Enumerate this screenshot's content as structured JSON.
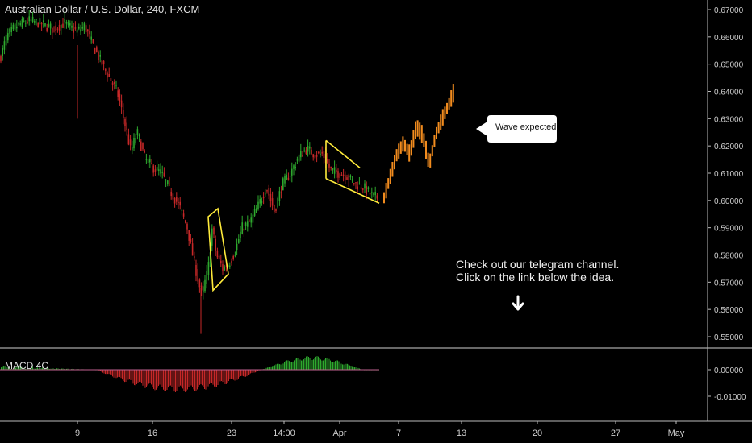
{
  "header": {
    "title": "Australian Dollar / U.S. Dollar, 240, FXCM"
  },
  "macd": {
    "label": "MACD 4C"
  },
  "annotations": {
    "bubble": "Wave expected",
    "note_line1": "Check out our telegram channel.",
    "note_line2": "Click on the link below the idea."
  },
  "colors": {
    "background": "#000000",
    "bull": "#2ea82e",
    "bear": "#c62828",
    "projection": "#f28c1e",
    "pattern": "#ffeb3b",
    "axis_text": "#cfcfcf"
  },
  "chart_data": {
    "type": "candlestick",
    "symbol": "Australian Dollar / U.S. Dollar",
    "timeframe": "240",
    "source": "FXCM",
    "y_axis": {
      "ticks": [
        "0.67000",
        "0.66000",
        "0.65000",
        "0.64000",
        "0.63000",
        "0.62000",
        "0.61000",
        "0.60000",
        "0.59000",
        "0.58000",
        "0.57000",
        "0.56000",
        "0.55000"
      ],
      "ylim": [
        0.545,
        0.6735
      ]
    },
    "x_axis": {
      "ticks": [
        "9",
        "16",
        "23",
        "14:00",
        "Apr",
        "7",
        "13",
        "20",
        "27",
        "May"
      ]
    },
    "price_path": [
      [
        0,
        0.652
      ],
      [
        8,
        0.66
      ],
      [
        20,
        0.664
      ],
      [
        35,
        0.666
      ],
      [
        50,
        0.665
      ],
      [
        65,
        0.663
      ],
      [
        80,
        0.665
      ],
      [
        95,
        0.662
      ],
      [
        105,
        0.664
      ],
      [
        115,
        0.657
      ],
      [
        130,
        0.648
      ],
      [
        145,
        0.64
      ],
      [
        155,
        0.628
      ],
      [
        162,
        0.618
      ],
      [
        170,
        0.625
      ],
      [
        180,
        0.615
      ],
      [
        190,
        0.612
      ],
      [
        200,
        0.61
      ],
      [
        212,
        0.603
      ],
      [
        222,
        0.598
      ],
      [
        232,
        0.59
      ],
      [
        240,
        0.578
      ],
      [
        250,
        0.565
      ],
      [
        258,
        0.575
      ],
      [
        263,
        0.59
      ],
      [
        268,
        0.58
      ],
      [
        276,
        0.575
      ],
      [
        284,
        0.577
      ],
      [
        292,
        0.582
      ],
      [
        300,
        0.59
      ],
      [
        310,
        0.592
      ],
      [
        320,
        0.598
      ],
      [
        330,
        0.605
      ],
      [
        340,
        0.596
      ],
      [
        350,
        0.606
      ],
      [
        360,
        0.61
      ],
      [
        370,
        0.616
      ],
      [
        380,
        0.619
      ],
      [
        390,
        0.617
      ],
      [
        400,
        0.617
      ],
      [
        410,
        0.611
      ],
      [
        420,
        0.61
      ],
      [
        430,
        0.609
      ],
      [
        440,
        0.606
      ],
      [
        450,
        0.605
      ],
      [
        460,
        0.602
      ],
      [
        468,
        0.601
      ]
    ],
    "projection_path": [
      [
        476,
        0.601
      ],
      [
        484,
        0.609
      ],
      [
        492,
        0.617
      ],
      [
        500,
        0.621
      ],
      [
        508,
        0.617
      ],
      [
        516,
        0.627
      ],
      [
        524,
        0.624
      ],
      [
        532,
        0.613
      ],
      [
        540,
        0.624
      ],
      [
        548,
        0.63
      ],
      [
        556,
        0.635
      ],
      [
        564,
        0.641
      ]
    ],
    "drawings": [
      {
        "name": "pattern-parallelogram-1",
        "points": [
          [
            258,
            0.594
          ],
          [
            270,
            0.597
          ],
          [
            283,
            0.573
          ],
          [
            264,
            0.567
          ]
        ]
      },
      {
        "name": "pattern-channel-upper",
        "points": [
          [
            404,
            0.622
          ],
          [
            446,
            0.612
          ]
        ]
      },
      {
        "name": "pattern-channel-lower",
        "points": [
          [
            404,
            0.608
          ],
          [
            470,
            0.599
          ]
        ]
      },
      {
        "name": "pattern-channel-left",
        "points": [
          [
            404,
            0.622
          ],
          [
            404,
            0.608
          ]
        ]
      }
    ],
    "macd_histogram": {
      "ticks": [
        "0.00000",
        "-0.01000"
      ],
      "x_end": 470,
      "segments": [
        {
          "from": 0,
          "to": 40,
          "min": 0.0,
          "max": 0.0012,
          "shape": "flat"
        },
        {
          "from": 40,
          "to": 120,
          "min": 0.0,
          "max": 0.0009,
          "shape": "decline"
        },
        {
          "from": 120,
          "to": 322,
          "min": -0.0085,
          "max": 0.0,
          "shape": "trough"
        },
        {
          "from": 322,
          "to": 470,
          "min": 0.0,
          "max": 0.0052,
          "shape": "hump"
        }
      ]
    }
  }
}
